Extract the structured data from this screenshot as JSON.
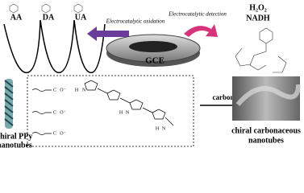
{
  "analytes": [
    "AA",
    "DA",
    "UA"
  ],
  "arrows": {
    "oxidation": "Electrocatalytic oxidation",
    "detection": "Electrocatalytic detection",
    "carbonization": "carbonization"
  },
  "electrode": "GCE",
  "targets": [
    "H₂O₂",
    "NADH"
  ],
  "ppy_label": [
    "chiral PPy",
    "nanotubes"
  ],
  "carbon_label": [
    "chiral carbonaceous",
    "nanotubes"
  ],
  "structure_atoms": {
    "carbonyl": "C",
    "oxygen": "O⁻",
    "hydrogen": "H",
    "nitrogen": "N"
  }
}
